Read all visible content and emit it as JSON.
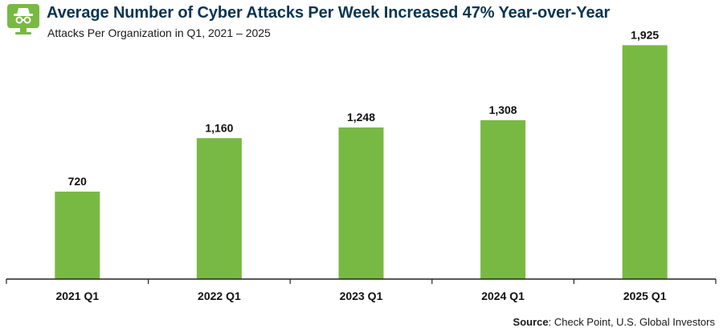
{
  "header": {
    "title": "Average Number of Cyber Attacks Per Week Increased 47% Year-over-Year",
    "subtitle": "Attacks Per Organization in Q1, 2021 – 2025",
    "logo_icon": "cyber-spy-monitor-icon"
  },
  "source": {
    "label": "Source",
    "text": ": Check Point, U.S. Global Investors"
  },
  "colors": {
    "bar": "#78b943",
    "title": "#0b3550",
    "axis": "#222222",
    "logo": "#78b943"
  },
  "chart_data": {
    "type": "bar",
    "categories": [
      "2021 Q1",
      "2022 Q1",
      "2023 Q1",
      "2024 Q1",
      "2025 Q1"
    ],
    "values": [
      720,
      1160,
      1248,
      1308,
      1925
    ],
    "value_labels": [
      "720",
      "1,160",
      "1,248",
      "1,308",
      "1,925"
    ],
    "title": "Average Number of Cyber Attacks Per Week Increased 47% Year-over-Year",
    "subtitle": "Attacks Per Organization in Q1, 2021 – 2025",
    "xlabel": "",
    "ylabel": "",
    "ylim": [
      0,
      2000
    ],
    "grid": false,
    "legend": "none"
  }
}
